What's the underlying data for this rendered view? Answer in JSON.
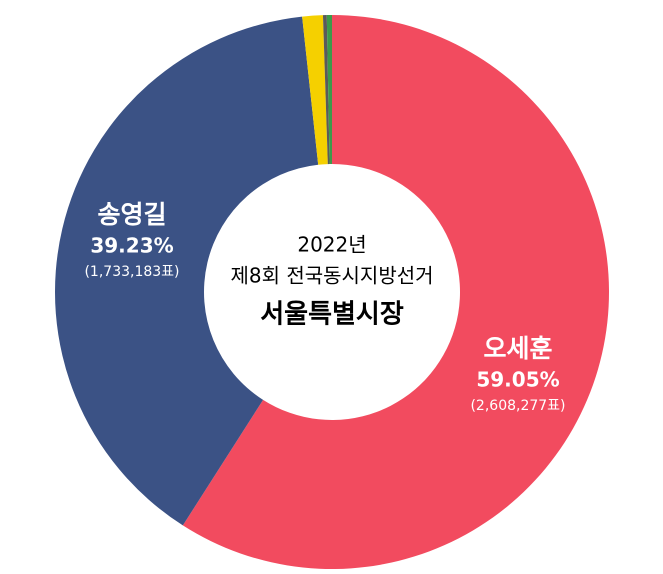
{
  "chart_data": {
    "type": "donut",
    "title": "서울특별시장",
    "annotations": [
      "2022년",
      "제8회 전국동시지방선거"
    ],
    "categories": [
      "오세훈",
      "송영길",
      null,
      null,
      null
    ],
    "values": [
      59.05,
      39.23,
      1.2,
      0.22,
      0.3
    ],
    "value_labels": [
      "59.05%",
      "39.23%",
      null,
      null,
      null
    ],
    "vote_labels": [
      "(2,608,277표)",
      "(1,733,183표)",
      null,
      null,
      null
    ],
    "colors": [
      "#f24b5f",
      "#3b5285",
      "#f5d000",
      "#5a5a5a",
      "#3d9a4a"
    ]
  }
}
